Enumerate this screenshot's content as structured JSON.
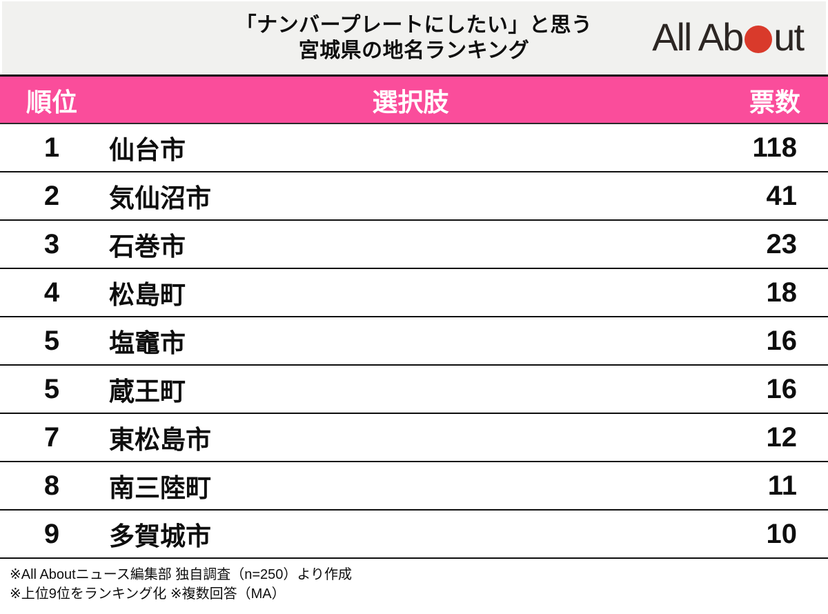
{
  "header": {
    "title_line1": "「ナンバープレートにしたい」と思う",
    "title_line2": "宮城県の地名ランキング"
  },
  "logo": {
    "part1": "All Ab",
    "part2": "ut",
    "name": "All About",
    "dot_color": "#d93a2b"
  },
  "table": {
    "columns": [
      "順位",
      "選択肢",
      "票数"
    ],
    "rows": [
      {
        "rank": "1",
        "name": "仙台市",
        "votes": "118"
      },
      {
        "rank": "2",
        "name": "気仙沼市",
        "votes": "41"
      },
      {
        "rank": "3",
        "name": "石巻市",
        "votes": "23"
      },
      {
        "rank": "4",
        "name": "松島町",
        "votes": "18"
      },
      {
        "rank": "5",
        "name": "塩竈市",
        "votes": "16"
      },
      {
        "rank": "5",
        "name": "蔵王町",
        "votes": "16"
      },
      {
        "rank": "7",
        "name": "東松島市",
        "votes": "12"
      },
      {
        "rank": "8",
        "name": "南三陸町",
        "votes": "11"
      },
      {
        "rank": "9",
        "name": "多賀城市",
        "votes": "10"
      }
    ]
  },
  "footer": {
    "note1": "※All Aboutニュース編集部 独自調査（n=250）より作成",
    "note2": "※上位9位をランキング化 ※複数回答（MA）"
  },
  "colors": {
    "top_header_bg": "#f1f1ef",
    "accent_pink": "#fa4d9b",
    "logo_red": "#d93a2b",
    "divider_black": "#0b0b0b",
    "text_black": "#0e0e0e"
  },
  "chart_data": {
    "type": "table",
    "title": "「ナンバープレートにしたい」と思う宮城県の地名ランキング",
    "columns": [
      "順位",
      "選択肢",
      "票数"
    ],
    "ranks": [
      1,
      2,
      3,
      4,
      5,
      5,
      7,
      8,
      9
    ],
    "categories": [
      "仙台市",
      "気仙沼市",
      "石巻市",
      "松島町",
      "塩竈市",
      "蔵王町",
      "東松島市",
      "南三陸町",
      "多賀城市"
    ],
    "values": [
      118,
      41,
      23,
      18,
      16,
      16,
      12,
      11,
      10
    ],
    "notes": [
      "※All Aboutニュース編集部 独自調査（n=250）より作成",
      "※上位9位をランキング化 ※複数回答（MA）"
    ]
  }
}
